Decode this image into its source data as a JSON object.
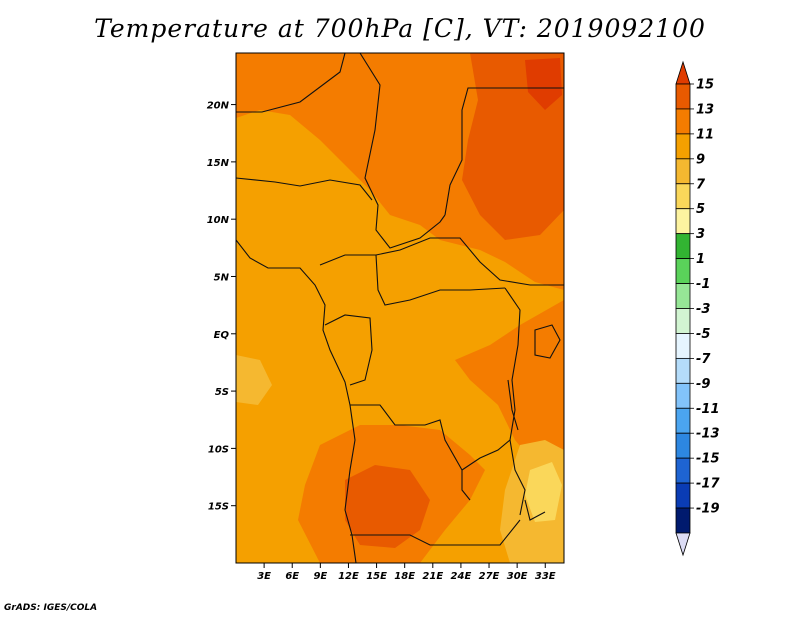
{
  "title": "Temperature at 700hPa [C], VT: 2019092100",
  "credit": "GrADS: IGES/COLA",
  "map": {
    "lon_range": [
      0,
      35
    ],
    "lat_range": [
      -20,
      24.5
    ],
    "lat_ticks": [
      {
        "value": 20,
        "label": "20N"
      },
      {
        "value": 15,
        "label": "15N"
      },
      {
        "value": 10,
        "label": "10N"
      },
      {
        "value": 5,
        "label": "5N"
      },
      {
        "value": 0,
        "label": "EQ"
      },
      {
        "value": -5,
        "label": "5S"
      },
      {
        "value": -10,
        "label": "10S"
      },
      {
        "value": -15,
        "label": "15S"
      }
    ],
    "lon_ticks": [
      {
        "value": 3,
        "label": "3E"
      },
      {
        "value": 6,
        "label": "6E"
      },
      {
        "value": 9,
        "label": "9E"
      },
      {
        "value": 12,
        "label": "12E"
      },
      {
        "value": 15,
        "label": "15E"
      },
      {
        "value": 18,
        "label": "18E"
      },
      {
        "value": 21,
        "label": "21E"
      },
      {
        "value": 24,
        "label": "24E"
      },
      {
        "value": 27,
        "label": "27E"
      },
      {
        "value": 30,
        "label": "30E"
      },
      {
        "value": 33,
        "label": "33E"
      }
    ],
    "colors": {
      "base": "#f5a000",
      "warm": "#f47c00",
      "hot": "#e85a00",
      "hottest": "#e03c00",
      "cool": "#f5b830",
      "coolest": "#fad75a",
      "border": "#111111"
    }
  },
  "colorbar": {
    "levels": [
      "15",
      "13",
      "11",
      "9",
      "7",
      "5",
      "3",
      "1",
      "-1",
      "-3",
      "-5",
      "-7",
      "-9",
      "-11",
      "-13",
      "-15",
      "-17",
      "-19"
    ],
    "colors": [
      "#e03c00",
      "#e85a00",
      "#f47c00",
      "#f5a000",
      "#f5b830",
      "#fad75a",
      "#fdf3a0",
      "#32b432",
      "#5ad25a",
      "#96e696",
      "#d2f5d2",
      "#e6f5ff",
      "#b4dcfa",
      "#82c3fa",
      "#4ba5f0",
      "#2d87e1",
      "#1e64d2",
      "#0a3cb4",
      "#001a6e",
      "#dcdcf5"
    ]
  }
}
